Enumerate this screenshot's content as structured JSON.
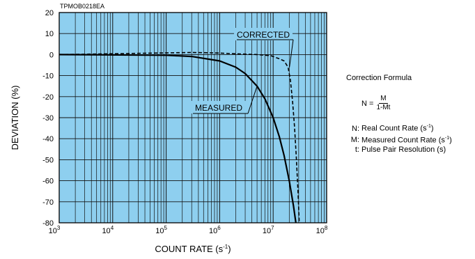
{
  "chart_data": {
    "type": "line",
    "code": "TPMOB0218EA",
    "xlabel": "COUNT RATE (s-1)",
    "xlabel_parts": {
      "base": "COUNT RATE (s",
      "sup": "-1",
      "end": ")"
    },
    "ylabel": "DEVIATION (%)",
    "x_scale": "log",
    "xlim": [
      1000,
      100000000
    ],
    "ylim": [
      -80,
      20
    ],
    "x_ticks": [
      {
        "base": "10",
        "exp": "3"
      },
      {
        "base": "10",
        "exp": "4"
      },
      {
        "base": "10",
        "exp": "5"
      },
      {
        "base": "10",
        "exp": "6"
      },
      {
        "base": "10",
        "exp": "7"
      },
      {
        "base": "10",
        "exp": "8"
      }
    ],
    "y_ticks": [
      "20",
      "10",
      "0",
      "-10",
      "-20",
      "-30",
      "-40",
      "-50",
      "-60",
      "-70",
      "-80"
    ],
    "grid": true,
    "background": "#8ecfef",
    "series": [
      {
        "name": "MEASURED",
        "style": "solid",
        "color": "#000000",
        "x": [
          1000,
          100000,
          300000,
          1000000,
          2000000,
          3000000,
          5000000,
          7000000,
          10000000,
          13000000,
          16000000,
          20000000,
          24000000,
          28000000,
          31000000
        ],
        "y": [
          0,
          -0.3,
          -0.9,
          -3,
          -6,
          -9,
          -15,
          -21,
          -30,
          -39,
          -48,
          -60,
          -72,
          -84,
          -93
        ]
      },
      {
        "name": "CORRECTED",
        "style": "dashed",
        "color": "#000000",
        "x": [
          1000,
          300000,
          800000,
          2000000,
          5000000,
          9000000,
          13000000,
          16000000,
          19000000,
          21000000,
          23000000,
          25000000,
          27000000,
          29000000,
          31000000
        ],
        "y": [
          0,
          1,
          0.8,
          0.4,
          0,
          -0.5,
          -2,
          -3,
          -6,
          -12,
          -22,
          -34,
          -48,
          -64,
          -82
        ]
      }
    ],
    "annotations": [
      "CORRECTED",
      "MEASURED"
    ]
  },
  "formula": {
    "title": "Correction Formula",
    "lhs": "N =",
    "numerator": "M",
    "denominator": "1-Mt",
    "definitions": [
      {
        "sym": "N:",
        "text": "Real Count Rate (s",
        "sup": "-1",
        "end": ")"
      },
      {
        "sym": "M:",
        "text": "Measured Count Rate (s",
        "sup": "-1",
        "end": ")"
      },
      {
        "sym": "t:",
        "text": "Pulse Pair Resolution (s)",
        "sup": "",
        "end": ""
      }
    ]
  },
  "colors": {
    "plot_bg": "#8ecfef",
    "grid": "#111111",
    "line": "#000000"
  }
}
